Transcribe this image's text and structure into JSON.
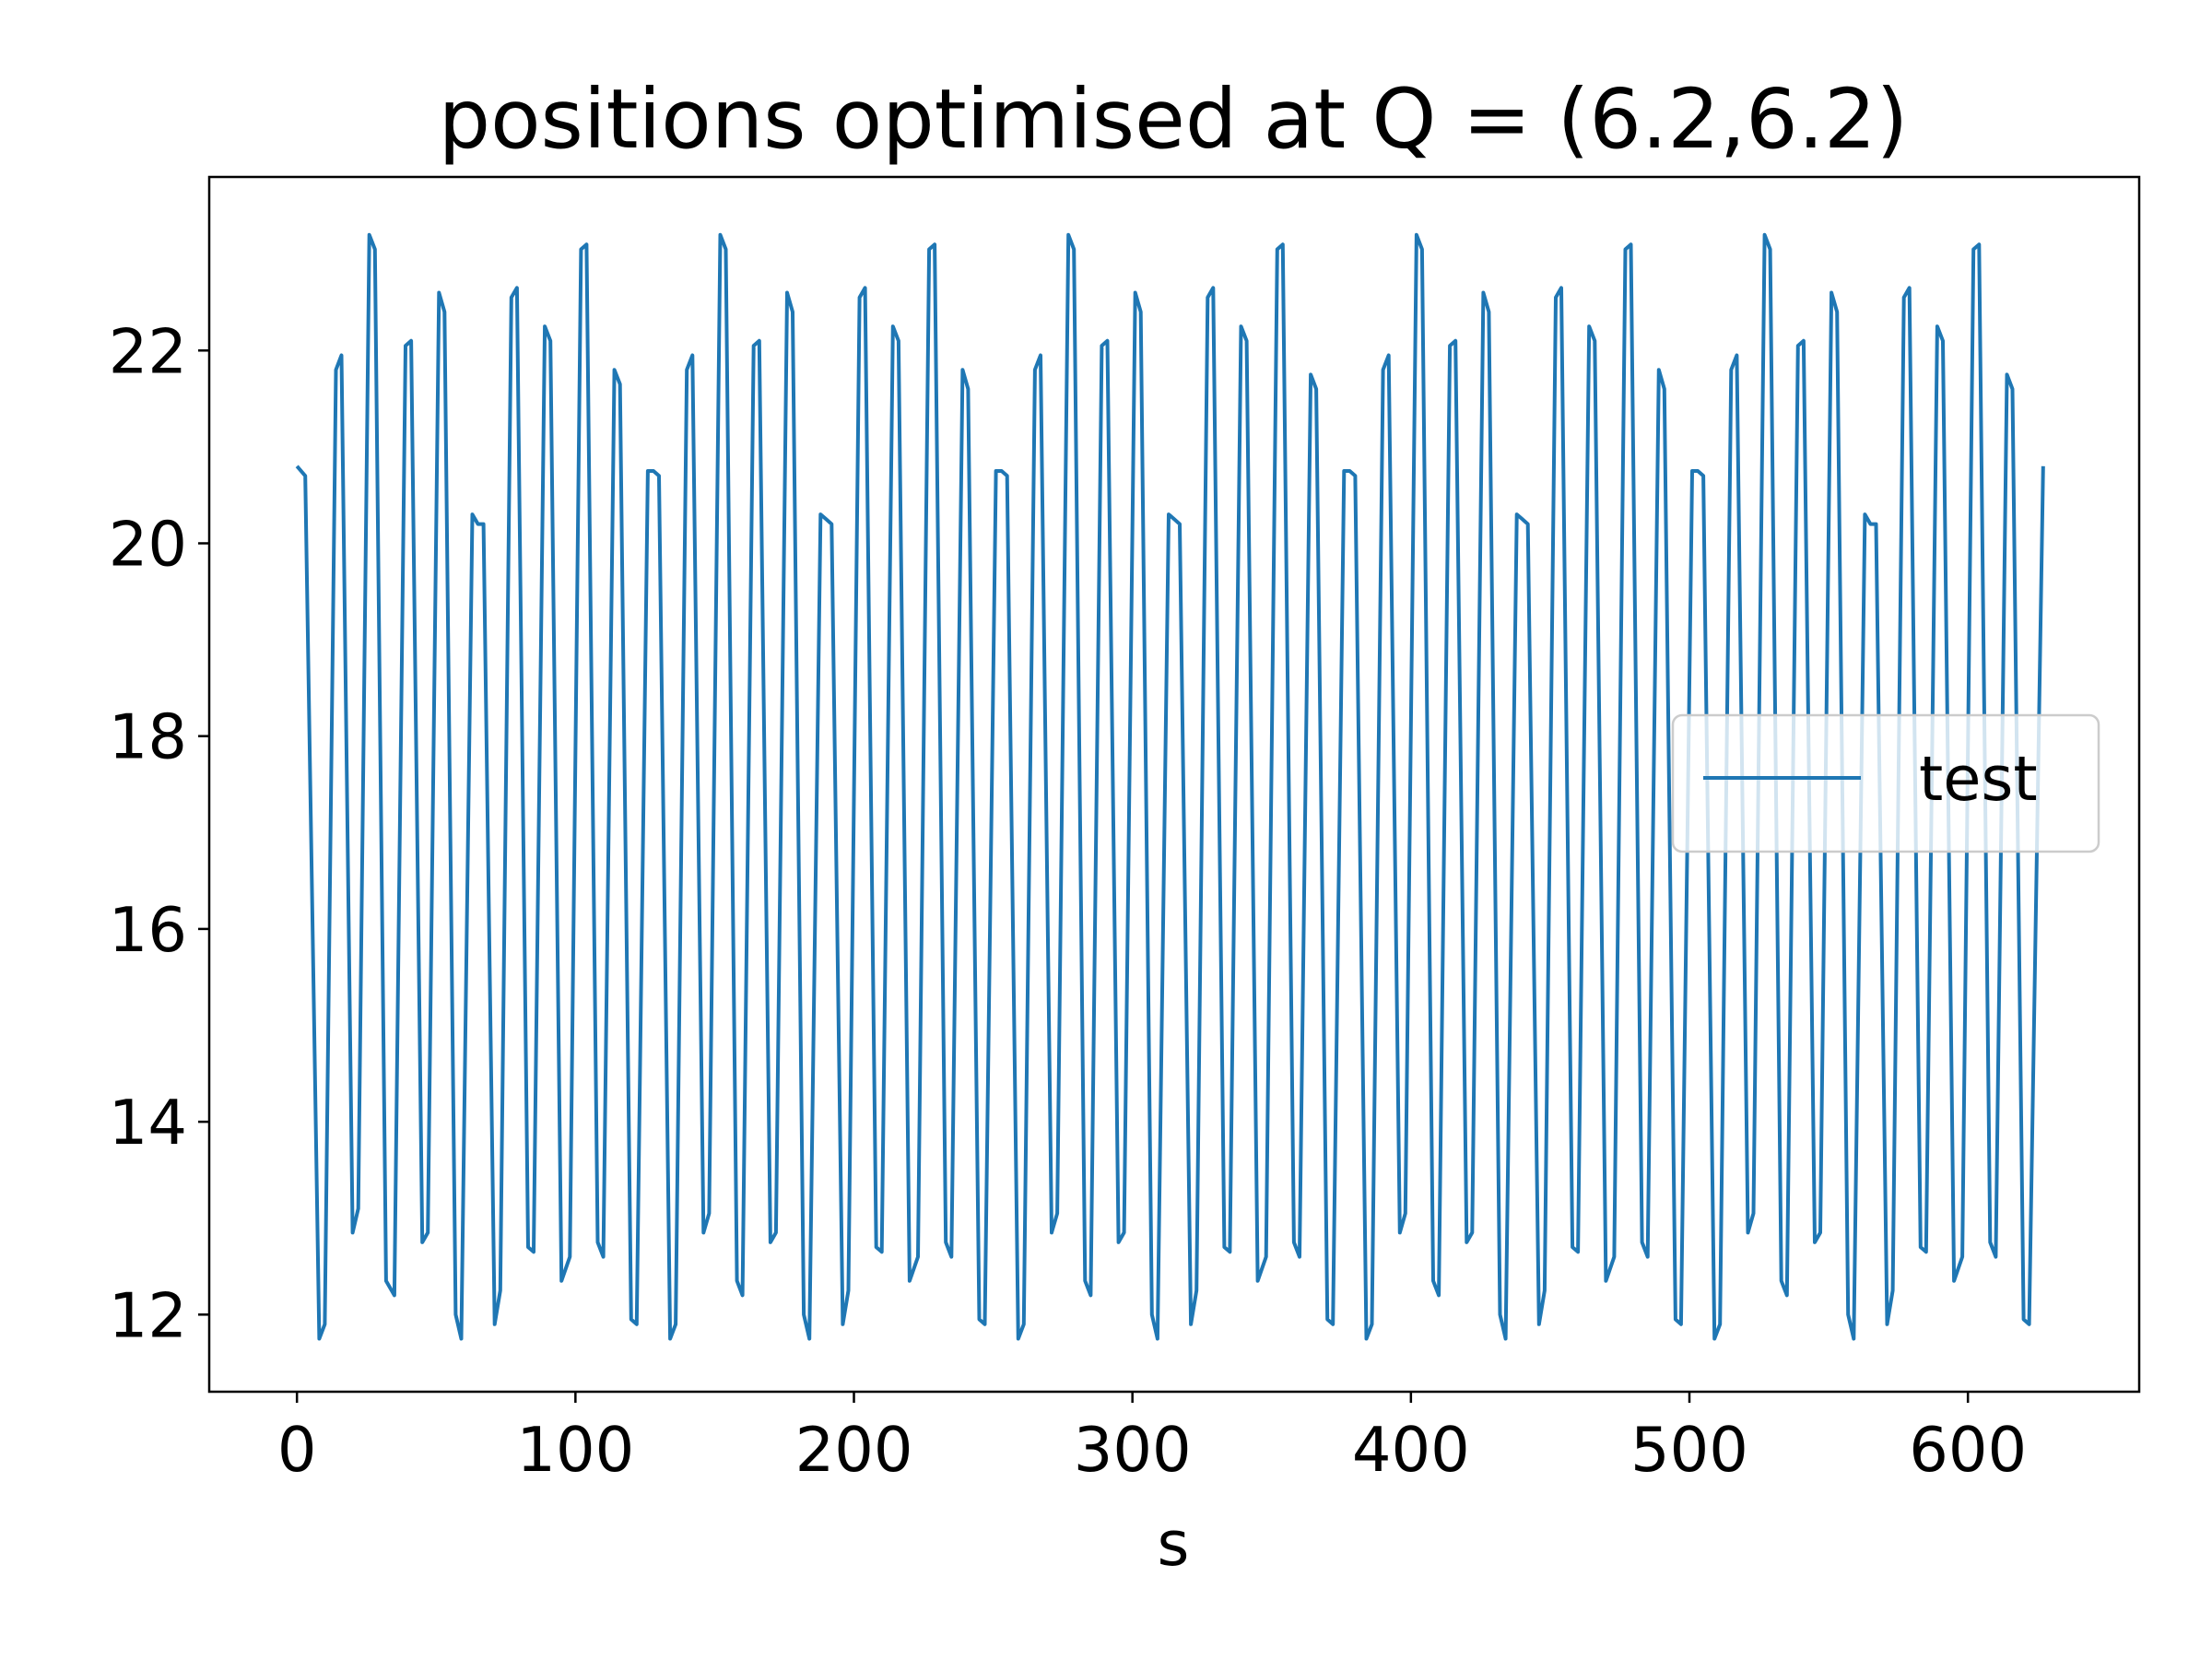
{
  "chart_data": {
    "type": "line",
    "title": "positions optimised at Q = (6.2,6.2)",
    "xlabel": "s",
    "ylabel": "",
    "xlim": [
      -31.5,
      661.5
    ],
    "ylim": [
      11.2,
      23.8
    ],
    "x_ticks": [
      0,
      100,
      200,
      300,
      400,
      500,
      600
    ],
    "y_ticks": [
      12,
      14,
      16,
      18,
      20,
      22
    ],
    "grid": false,
    "legend_position": "center-right",
    "series": [
      {
        "name": "test",
        "color": "#1f77b4",
        "points": [
          [
            0,
            20.8
          ],
          [
            3,
            20.7
          ],
          [
            8,
            11.75
          ],
          [
            10,
            11.9
          ],
          [
            14,
            21.8
          ],
          [
            16,
            21.95
          ],
          [
            20,
            12.85
          ],
          [
            22,
            13.1
          ],
          [
            26,
            23.2
          ],
          [
            28,
            23.05
          ],
          [
            32,
            12.35
          ],
          [
            35,
            12.2
          ],
          [
            39,
            22.05
          ],
          [
            41,
            22.1
          ],
          [
            45,
            12.75
          ],
          [
            47,
            12.85
          ],
          [
            51,
            22.6
          ],
          [
            53,
            22.4
          ],
          [
            57,
            12.0
          ],
          [
            59,
            11.75
          ],
          [
            63,
            20.3
          ],
          [
            65,
            20.2
          ],
          [
            67,
            20.2
          ],
          [
            71,
            11.9
          ],
          [
            73,
            12.25
          ],
          [
            77,
            22.55
          ],
          [
            79,
            22.65
          ],
          [
            83,
            12.7
          ],
          [
            85,
            12.65
          ],
          [
            89,
            22.25
          ],
          [
            91,
            22.1
          ],
          [
            95,
            12.35
          ],
          [
            98,
            12.6
          ],
          [
            102,
            23.05
          ],
          [
            104,
            23.1
          ],
          [
            108,
            12.75
          ],
          [
            110,
            12.6
          ],
          [
            114,
            21.8
          ],
          [
            116,
            21.65
          ],
          [
            120,
            11.95
          ],
          [
            122,
            11.9
          ],
          [
            126,
            20.75
          ],
          [
            128,
            20.75
          ],
          [
            130,
            20.7
          ],
          [
            134,
            11.75
          ],
          [
            136,
            11.9
          ],
          [
            140,
            21.8
          ],
          [
            142,
            21.95
          ],
          [
            146,
            12.85
          ],
          [
            148,
            13.05
          ],
          [
            152,
            23.2
          ],
          [
            154,
            23.05
          ],
          [
            158,
            12.35
          ],
          [
            160,
            12.2
          ],
          [
            164,
            22.05
          ],
          [
            166,
            22.1
          ],
          [
            170,
            12.75
          ],
          [
            172,
            12.85
          ],
          [
            176,
            22.6
          ],
          [
            178,
            22.4
          ],
          [
            182,
            12.0
          ],
          [
            184,
            11.75
          ],
          [
            188,
            20.3
          ],
          [
            190,
            20.25
          ],
          [
            192,
            20.2
          ],
          [
            196,
            11.9
          ],
          [
            198,
            12.25
          ],
          [
            202,
            22.55
          ],
          [
            204,
            22.65
          ],
          [
            208,
            12.7
          ],
          [
            210,
            12.65
          ],
          [
            214,
            22.25
          ],
          [
            216,
            22.1
          ],
          [
            220,
            12.35
          ],
          [
            223,
            12.6
          ],
          [
            227,
            23.05
          ],
          [
            229,
            23.1
          ],
          [
            233,
            12.75
          ],
          [
            235,
            12.6
          ],
          [
            239,
            21.8
          ],
          [
            241,
            21.6
          ],
          [
            245,
            11.95
          ],
          [
            247,
            11.9
          ],
          [
            251,
            20.75
          ],
          [
            253,
            20.75
          ],
          [
            255,
            20.7
          ],
          [
            259,
            11.75
          ],
          [
            261,
            11.9
          ],
          [
            265,
            21.8
          ],
          [
            267,
            21.95
          ],
          [
            271,
            12.85
          ],
          [
            273,
            13.05
          ],
          [
            277,
            23.2
          ],
          [
            279,
            23.05
          ],
          [
            283,
            12.35
          ],
          [
            285,
            12.2
          ],
          [
            289,
            22.05
          ],
          [
            291,
            22.1
          ],
          [
            295,
            12.75
          ],
          [
            297,
            12.85
          ],
          [
            301,
            22.6
          ],
          [
            303,
            22.4
          ],
          [
            307,
            12.0
          ],
          [
            309,
            11.75
          ],
          [
            313,
            20.3
          ],
          [
            315,
            20.25
          ],
          [
            317,
            20.2
          ],
          [
            321,
            11.9
          ],
          [
            323,
            12.25
          ],
          [
            327,
            22.55
          ],
          [
            329,
            22.65
          ],
          [
            333,
            12.7
          ],
          [
            335,
            12.65
          ],
          [
            339,
            22.25
          ],
          [
            341,
            22.1
          ],
          [
            345,
            12.35
          ],
          [
            348,
            12.6
          ],
          [
            352,
            23.05
          ],
          [
            354,
            23.1
          ],
          [
            358,
            12.75
          ],
          [
            360,
            12.6
          ],
          [
            364,
            21.75
          ],
          [
            366,
            21.6
          ],
          [
            370,
            11.95
          ],
          [
            372,
            11.9
          ],
          [
            376,
            20.75
          ],
          [
            378,
            20.75
          ],
          [
            380,
            20.7
          ],
          [
            384,
            11.75
          ],
          [
            386,
            11.9
          ],
          [
            390,
            21.8
          ],
          [
            392,
            21.95
          ],
          [
            396,
            12.85
          ],
          [
            398,
            13.05
          ],
          [
            402,
            23.2
          ],
          [
            404,
            23.05
          ],
          [
            408,
            12.35
          ],
          [
            410,
            12.2
          ],
          [
            414,
            22.05
          ],
          [
            416,
            22.1
          ],
          [
            420,
            12.75
          ],
          [
            422,
            12.85
          ],
          [
            426,
            22.6
          ],
          [
            428,
            22.4
          ],
          [
            432,
            12.0
          ],
          [
            434,
            11.75
          ],
          [
            438,
            20.3
          ],
          [
            440,
            20.25
          ],
          [
            442,
            20.2
          ],
          [
            446,
            11.9
          ],
          [
            448,
            12.25
          ],
          [
            452,
            22.55
          ],
          [
            454,
            22.65
          ],
          [
            458,
            12.7
          ],
          [
            460,
            12.65
          ],
          [
            464,
            22.25
          ],
          [
            466,
            22.1
          ],
          [
            470,
            12.35
          ],
          [
            473,
            12.6
          ],
          [
            477,
            23.05
          ],
          [
            479,
            23.1
          ],
          [
            483,
            12.75
          ],
          [
            485,
            12.6
          ],
          [
            489,
            21.8
          ],
          [
            491,
            21.6
          ],
          [
            495,
            11.95
          ],
          [
            497,
            11.9
          ],
          [
            501,
            20.75
          ],
          [
            503,
            20.75
          ],
          [
            505,
            20.7
          ],
          [
            509,
            11.75
          ],
          [
            511,
            11.9
          ],
          [
            515,
            21.8
          ],
          [
            517,
            21.95
          ],
          [
            521,
            12.85
          ],
          [
            523,
            13.05
          ],
          [
            527,
            23.2
          ],
          [
            529,
            23.05
          ],
          [
            533,
            12.35
          ],
          [
            535,
            12.2
          ],
          [
            539,
            22.05
          ],
          [
            541,
            22.1
          ],
          [
            545,
            12.75
          ],
          [
            547,
            12.85
          ],
          [
            551,
            22.6
          ],
          [
            553,
            22.4
          ],
          [
            557,
            12.0
          ],
          [
            559,
            11.75
          ],
          [
            563,
            20.3
          ],
          [
            565,
            20.2
          ],
          [
            567,
            20.2
          ],
          [
            571,
            11.9
          ],
          [
            573,
            12.25
          ],
          [
            577,
            22.55
          ],
          [
            579,
            22.65
          ],
          [
            583,
            12.7
          ],
          [
            585,
            12.65
          ],
          [
            589,
            22.25
          ],
          [
            591,
            22.1
          ],
          [
            595,
            12.35
          ],
          [
            598,
            12.6
          ],
          [
            602,
            23.05
          ],
          [
            604,
            23.1
          ],
          [
            608,
            12.75
          ],
          [
            610,
            12.6
          ],
          [
            614,
            21.75
          ],
          [
            616,
            21.6
          ],
          [
            620,
            11.95
          ],
          [
            622,
            11.9
          ],
          [
            627,
            20.8
          ]
        ]
      }
    ]
  }
}
